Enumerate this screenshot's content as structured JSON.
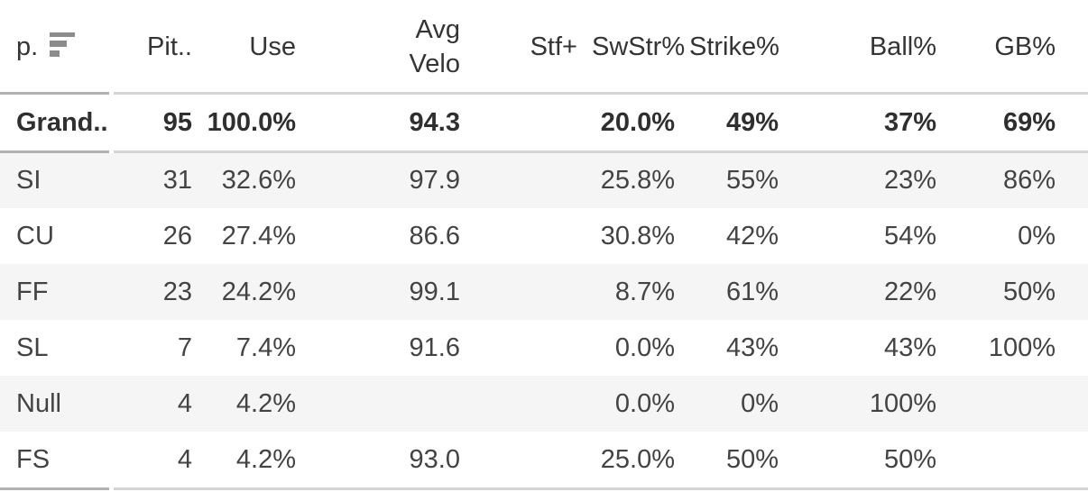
{
  "table": {
    "columns": [
      {
        "key": "p",
        "label": "p.",
        "sort": "descending"
      },
      {
        "key": "pit",
        "label": "Pit.."
      },
      {
        "key": "use",
        "label": "Use"
      },
      {
        "key": "avg_velo",
        "label": "Avg Velo"
      },
      {
        "key": "stf_plus",
        "label": "Stf+"
      },
      {
        "key": "swstr_pct",
        "label": "SwStr%"
      },
      {
        "key": "strike_pct",
        "label": "Strike%"
      },
      {
        "key": "ball_pct",
        "label": "Ball%"
      },
      {
        "key": "gb_pct",
        "label": "GB%"
      }
    ],
    "rows": [
      {
        "p": "Grand..",
        "pit": "95",
        "use": "100.0%",
        "avg_velo": "94.3",
        "stf_plus": "",
        "swstr_pct": "20.0%",
        "strike_pct": "49%",
        "ball_pct": "37%",
        "gb_pct": "69%",
        "is_total": true
      },
      {
        "p": "SI",
        "pit": "31",
        "use": "32.6%",
        "avg_velo": "97.9",
        "stf_plus": "",
        "swstr_pct": "25.8%",
        "strike_pct": "55%",
        "ball_pct": "23%",
        "gb_pct": "86%"
      },
      {
        "p": "CU",
        "pit": "26",
        "use": "27.4%",
        "avg_velo": "86.6",
        "stf_plus": "",
        "swstr_pct": "30.8%",
        "strike_pct": "42%",
        "ball_pct": "54%",
        "gb_pct": "0%"
      },
      {
        "p": "FF",
        "pit": "23",
        "use": "24.2%",
        "avg_velo": "99.1",
        "stf_plus": "",
        "swstr_pct": "8.7%",
        "strike_pct": "61%",
        "ball_pct": "22%",
        "gb_pct": "50%"
      },
      {
        "p": "SL",
        "pit": "7",
        "use": "7.4%",
        "avg_velo": "91.6",
        "stf_plus": "",
        "swstr_pct": "0.0%",
        "strike_pct": "43%",
        "ball_pct": "43%",
        "gb_pct": "100%"
      },
      {
        "p": "Null",
        "pit": "4",
        "use": "4.2%",
        "avg_velo": "",
        "stf_plus": "",
        "swstr_pct": "0.0%",
        "strike_pct": "0%",
        "ball_pct": "100%",
        "gb_pct": ""
      },
      {
        "p": "FS",
        "pit": "4",
        "use": "4.2%",
        "avg_velo": "93.0",
        "stf_plus": "",
        "swstr_pct": "25.0%",
        "strike_pct": "50%",
        "ball_pct": "50%",
        "gb_pct": ""
      }
    ],
    "colors": {
      "stripe_row_bg": "#f5f5f5",
      "rule_header_segment": "#b2b2b2",
      "rule_body_segment": "#d4d4d4",
      "text": "#434343",
      "text_strong": "#2f2f2f",
      "sort_icon": "#8c8c8c"
    }
  }
}
